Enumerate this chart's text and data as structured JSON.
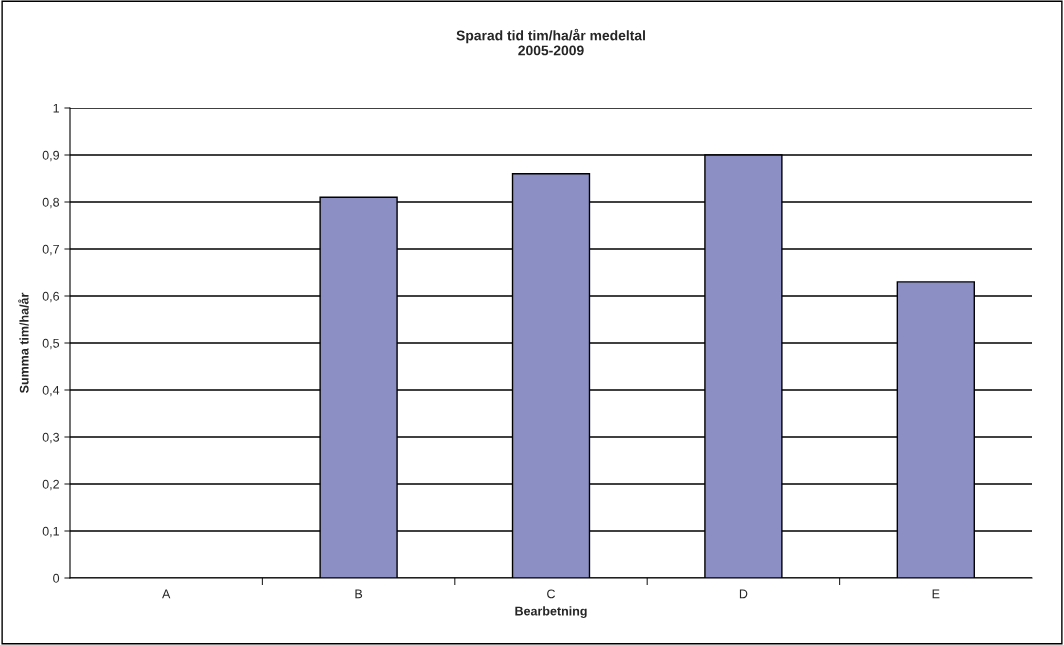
{
  "chart_data": {
    "type": "bar",
    "title": "Sparad tid tim/ha/år medeltal\n2005-2009",
    "xlabel": "Bearbetning",
    "ylabel": "Summa tim/ha/år",
    "categories": [
      "A",
      "B",
      "C",
      "D",
      "E"
    ],
    "values": [
      0,
      0.81,
      0.86,
      0.9,
      0.63
    ],
    "color": "#8b8fc4",
    "ylim": [
      0,
      1
    ],
    "yticks": [
      0,
      {
        "value": 0.1,
        "label": "0,1"
      },
      {
        "value": 0.2,
        "label": "0,2"
      },
      {
        "value": 0.3,
        "label": "0,3"
      },
      {
        "value": 0.4,
        "label": "0,4"
      },
      {
        "value": 0.5,
        "label": "0,5"
      },
      {
        "value": 0.6,
        "label": "0,6"
      },
      {
        "value": 0.7,
        "label": "0,7"
      },
      {
        "value": 0.8,
        "label": "0,8"
      },
      {
        "value": 0.9,
        "label": "0,9"
      },
      1
    ],
    "grid": "y",
    "legend": false
  }
}
